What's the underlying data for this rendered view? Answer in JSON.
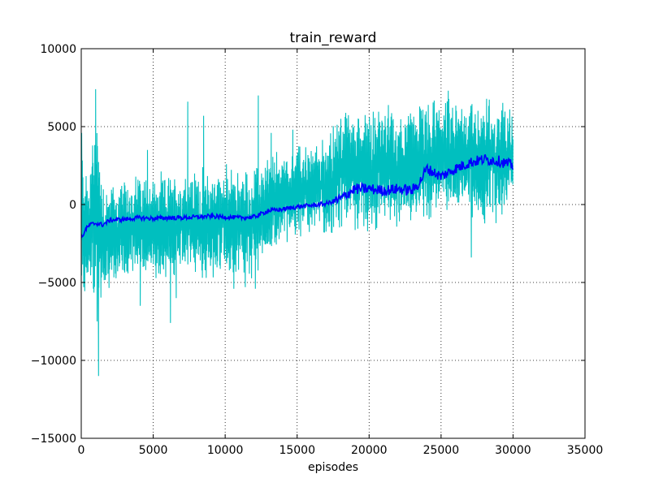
{
  "chart_data": {
    "type": "line",
    "title": "train_reward",
    "xlabel": "episodes",
    "ylabel": "",
    "xlim": [
      0,
      35000
    ],
    "ylim": [
      -15000,
      10000
    ],
    "xticks": [
      0,
      5000,
      10000,
      15000,
      20000,
      25000,
      30000,
      35000
    ],
    "xtick_labels": [
      "0",
      "5000",
      "10000",
      "15000",
      "20000",
      "25000",
      "30000",
      "35000"
    ],
    "yticks": [
      -15000,
      -10000,
      -5000,
      0,
      5000,
      10000
    ],
    "ytick_labels": [
      "−15000",
      "−10000",
      "−5000",
      "0",
      "5000",
      "10000"
    ],
    "grid": true,
    "legend": "none",
    "series": [
      {
        "color": "#00bfbf",
        "style": "raw",
        "x": [
          0,
          500,
          1000,
          1500,
          2000,
          3000,
          4000,
          5000,
          6000,
          7000,
          8000,
          9000,
          10000,
          11000,
          12000,
          13000,
          14000,
          15000,
          16000,
          17000,
          18000,
          19000,
          20000,
          21000,
          22000,
          23000,
          24000,
          25000,
          26000,
          27000,
          28000,
          29000,
          30000
        ],
        "low": [
          -6000,
          -6200,
          -7500,
          -6500,
          -5500,
          -5300,
          -5200,
          -5000,
          -5000,
          -5000,
          -5000,
          -5200,
          -5000,
          -4800,
          -5200,
          -3500,
          -2800,
          -2300,
          -2000,
          -2200,
          -2500,
          -2000,
          -2200,
          -1800,
          -1500,
          -1400,
          -1200,
          -800,
          -800,
          -1200,
          -2200,
          -1500,
          -1000
        ],
        "high": [
          4600,
          2200,
          7400,
          2200,
          1700,
          1800,
          2500,
          2200,
          2200,
          2500,
          2500,
          2600,
          2800,
          2500,
          2600,
          3500,
          3800,
          4200,
          4000,
          4500,
          6500,
          6500,
          6500,
          6800,
          6200,
          6800,
          6900,
          7000,
          7000,
          7100,
          7200,
          7200,
          7000
        ],
        "spikes": [
          [
            30,
            4600
          ],
          [
            1000,
            7400
          ],
          [
            1200,
            -11000
          ],
          [
            4600,
            3500
          ],
          [
            6200,
            -7600
          ],
          [
            7400,
            6600
          ],
          [
            8500,
            5700
          ],
          [
            12300,
            7000
          ],
          [
            13200,
            4600
          ],
          [
            14700,
            4800
          ],
          [
            1100,
            -7500
          ],
          [
            4100,
            -6500
          ],
          [
            6600,
            -6000
          ],
          [
            10600,
            -5400
          ],
          [
            11400,
            -5300
          ],
          [
            12100,
            -5400
          ],
          [
            25500,
            7300
          ],
          [
            27100,
            -3400
          ]
        ]
      },
      {
        "color": "#0000ff",
        "style": "smoothed",
        "x": [
          0,
          300,
          600,
          1000,
          1500,
          2000,
          3000,
          4000,
          5000,
          6000,
          7000,
          8000,
          9000,
          10000,
          11000,
          12000,
          12500,
          13000,
          14000,
          15000,
          16000,
          17000,
          17500,
          18000,
          18500,
          19000,
          20000,
          21000,
          22000,
          23000,
          23500,
          24000,
          25000,
          26000,
          27000,
          28000,
          29000,
          30000
        ],
        "values": [
          -2200,
          -1600,
          -1300,
          -1200,
          -1300,
          -1000,
          -950,
          -850,
          -900,
          -850,
          -850,
          -800,
          -750,
          -800,
          -850,
          -800,
          -600,
          -400,
          -300,
          -150,
          -50,
          50,
          200,
          350,
          700,
          1000,
          1000,
          900,
          1000,
          900,
          1400,
          2300,
          1800,
          2300,
          2700,
          2900,
          2800,
          2500
        ]
      }
    ]
  }
}
